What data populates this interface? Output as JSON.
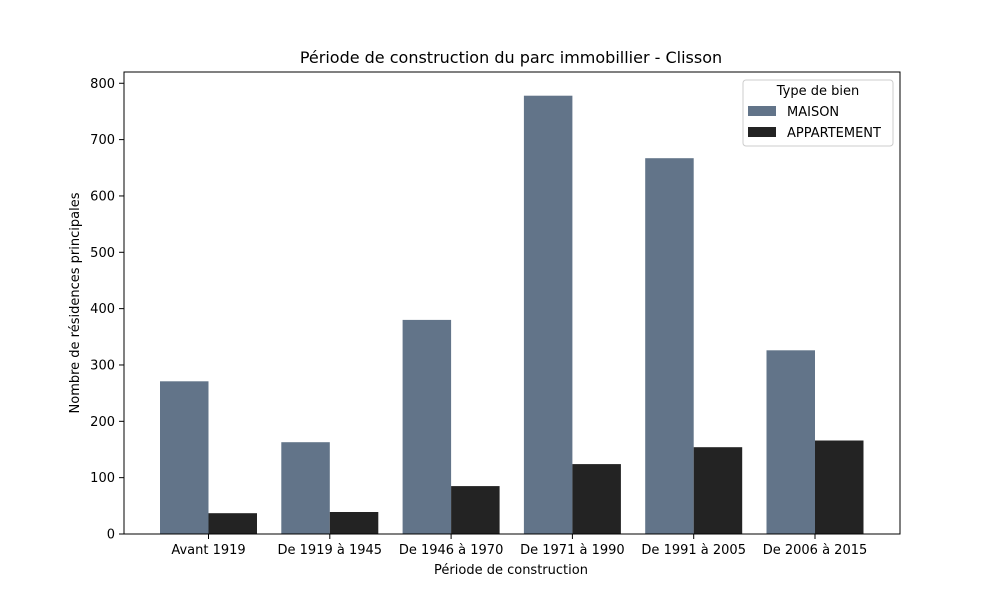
{
  "chart_data": {
    "type": "bar",
    "title": "Période de construction du parc immobillier - Clisson",
    "xlabel": "Période de construction",
    "ylabel": "Nombre de résidences principales",
    "categories": [
      "Avant 1919",
      "De 1919 à 1945",
      "De 1946 à 1970",
      "De 1971 à 1990",
      "De 1991 à 2005",
      "De 2006 à 2015"
    ],
    "series": [
      {
        "name": "MAISON",
        "values": [
          271,
          163,
          380,
          778,
          667,
          326
        ],
        "color": "#627489"
      },
      {
        "name": "APPARTEMENT",
        "values": [
          37,
          39,
          85,
          124,
          154,
          166
        ],
        "color": "#232323"
      }
    ],
    "ylim": [
      0,
      820
    ],
    "yticks": [
      0,
      100,
      200,
      300,
      400,
      500,
      600,
      700,
      800
    ],
    "legend": {
      "title": "Type de bien",
      "placement": "top-right"
    },
    "grid": false
  }
}
